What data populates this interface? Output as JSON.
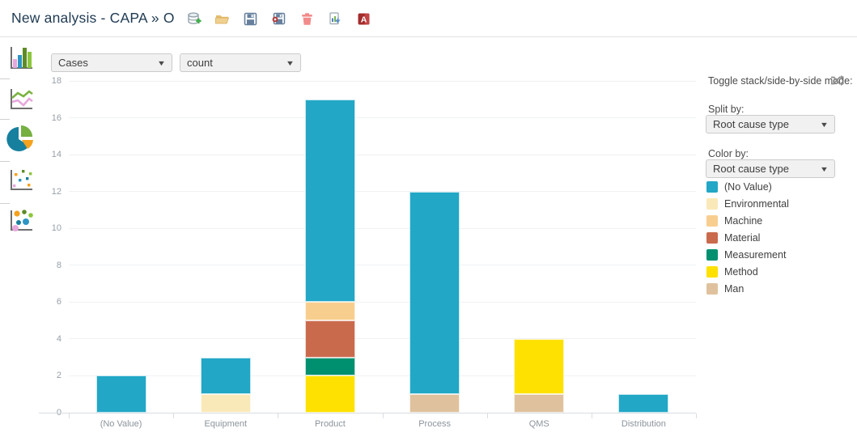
{
  "header": {
    "title": "New analysis - CAPA » O",
    "toolbar_icons": [
      {
        "name": "add-datasource-icon"
      },
      {
        "name": "open-folder-icon"
      },
      {
        "name": "save-icon"
      },
      {
        "name": "save-as-icon"
      },
      {
        "name": "delete-icon"
      },
      {
        "name": "export-data-icon"
      },
      {
        "name": "export-pdf-icon"
      }
    ]
  },
  "sidebar": {
    "chart_types": [
      {
        "name": "bar-chart"
      },
      {
        "name": "line-chart"
      },
      {
        "name": "pie-chart"
      },
      {
        "name": "scatter-plot"
      },
      {
        "name": "bubble-chart"
      }
    ]
  },
  "controls": {
    "dimension_value": "Cases",
    "measure_value": "count"
  },
  "panel": {
    "toggle_label": "Toggle stack/side-by-side mode:",
    "split_by_label": "Split by:",
    "split_by_value": "Root cause type",
    "color_by_label": "Color by:",
    "color_by_value": "Root cause type"
  },
  "chart_data": {
    "type": "bar",
    "stacked": true,
    "categories": [
      "(No Value)",
      "Equipment",
      "Product",
      "Process",
      "QMS",
      "Distribution"
    ],
    "series": [
      {
        "name": "Man",
        "color": "#dfc29d",
        "values": [
          0,
          0,
          0,
          1,
          1,
          0
        ]
      },
      {
        "name": "Method",
        "color": "#ffe100",
        "values": [
          0,
          0,
          2,
          0,
          3,
          0
        ]
      },
      {
        "name": "Measurement",
        "color": "#00906f",
        "values": [
          0,
          0,
          1,
          0,
          0,
          0
        ]
      },
      {
        "name": "Material",
        "color": "#ca6a4d",
        "values": [
          0,
          0,
          2,
          0,
          0,
          0
        ]
      },
      {
        "name": "Machine",
        "color": "#f8ce8f",
        "values": [
          0,
          0,
          1,
          0,
          0,
          0
        ]
      },
      {
        "name": "Environmental",
        "color": "#fae9b8",
        "values": [
          0,
          1,
          0,
          0,
          0,
          0
        ]
      },
      {
        "name": "(No Value)",
        "color": "#22a7c6",
        "values": [
          2,
          2,
          11,
          11,
          0,
          1
        ]
      }
    ],
    "category_totals": {
      "(No Value)": 2,
      "Equipment": 3,
      "Product": 17,
      "Process": 12,
      "QMS": 4,
      "Distribution": 1
    },
    "ylabel": "",
    "xlabel": "",
    "ylim": [
      0,
      18
    ],
    "ytick_step": 2,
    "grid": true,
    "legend_position": "right",
    "legend_order": [
      "(No Value)",
      "Environmental",
      "Machine",
      "Material",
      "Measurement",
      "Method",
      "Man"
    ]
  }
}
